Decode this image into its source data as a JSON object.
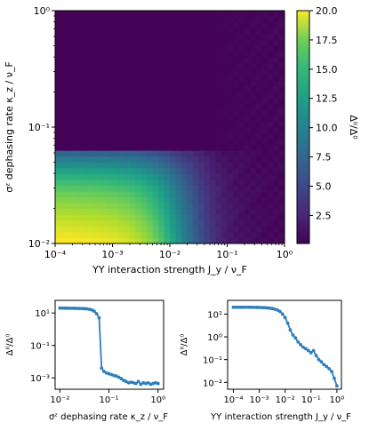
{
  "chart_data": [
    {
      "type": "heatmap",
      "xlabel": "YY interaction strength J_y / ν_F",
      "ylabel": "σᶻ dephasing rate κ_z / ν_F",
      "x_scale": "log",
      "y_scale": "log",
      "xlim": [
        0.0001,
        1
      ],
      "ylim": [
        0.01,
        1
      ],
      "x_ticks": [
        {
          "value": 0.0001,
          "label": "10⁻⁴"
        },
        {
          "value": 0.001,
          "label": "10⁻³"
        },
        {
          "value": 0.01,
          "label": "10⁻²"
        },
        {
          "value": 0.1,
          "label": "10⁻¹"
        },
        {
          "value": 1,
          "label": "10⁰"
        }
      ],
      "y_ticks": [
        {
          "value": 0.01,
          "label": "10⁻²"
        },
        {
          "value": 0.1,
          "label": "10⁻¹"
        },
        {
          "value": 1,
          "label": "10⁰"
        }
      ],
      "colorbar": {
        "label": "Δᴵᴵ/Δ⁰",
        "range": [
          0.1,
          20
        ],
        "colormap": "viridis",
        "ticks": [
          "2.5",
          "5.0",
          "7.5",
          "10.0",
          "12.5",
          "15.0",
          "17.5",
          "20.0"
        ]
      },
      "grid": {
        "nx": 40,
        "ny": 40,
        "description_values": {
          "high_region_max": 20,
          "kappa_transition": 0.063,
          "j_transition": 0.015,
          "background": 0.2
        }
      }
    },
    {
      "type": "line",
      "xlabel": "σᶻ dephasing rate κ_z / ν_F",
      "ylabel": "Δᴵᴵ/Δ⁰",
      "x_scale": "log",
      "y_scale": "log",
      "xlim": [
        0.008,
        1.3
      ],
      "ylim": [
        0.0002,
        60
      ],
      "x_ticks": [
        {
          "value": 0.01,
          "label": "10⁻²"
        },
        {
          "value": 0.1,
          "label": "10⁻¹"
        },
        {
          "value": 1,
          "label": "10⁰"
        }
      ],
      "y_ticks": [
        {
          "value": 10,
          "label": "10¹"
        },
        {
          "value": 0.1,
          "label": "10⁻¹"
        },
        {
          "value": 0.001,
          "label": "10⁻³"
        }
      ],
      "color": "#2e7ebc",
      "series": [
        {
          "x": [
            0.01,
            0.0112,
            0.0126,
            0.0141,
            0.0158,
            0.0178,
            0.02,
            0.0224,
            0.0251,
            0.0282,
            0.0316,
            0.0355,
            0.0398,
            0.0447,
            0.05,
            0.056,
            0.0631,
            0.0708,
            0.0794,
            0.0891,
            0.1,
            0.112,
            0.126,
            0.141,
            0.158,
            0.178,
            0.2,
            0.224,
            0.251,
            0.282,
            0.316,
            0.355,
            0.398,
            0.447,
            0.501,
            0.562,
            0.631,
            0.708,
            0.794,
            0.891,
            1.0
          ],
          "y": [
            20,
            20,
            19.8,
            19.7,
            19.6,
            19.5,
            19.4,
            19.2,
            19.0,
            18.8,
            18.4,
            18.0,
            17.0,
            15.5,
            13.0,
            9.0,
            5.0,
            0.004,
            0.0025,
            0.002,
            0.0018,
            0.0016,
            0.0014,
            0.0013,
            0.0011,
            0.0009,
            0.0007,
            0.0006,
            0.0005,
            0.00055,
            0.0005,
            0.00045,
            0.0006,
            0.0004,
            0.0005,
            0.00045,
            0.0005,
            0.0004,
            0.00045,
            0.0005,
            0.00045
          ]
        }
      ]
    },
    {
      "type": "line",
      "xlabel": "YY interaction strength J_y / ν_F",
      "ylabel": "Δᴵᴵ/Δ⁰",
      "x_scale": "log",
      "y_scale": "log",
      "xlim": [
        6e-05,
        1.5
      ],
      "ylim": [
        0.005,
        40
      ],
      "x_ticks": [
        {
          "value": 0.0001,
          "label": "10⁻⁴"
        },
        {
          "value": 0.001,
          "label": "10⁻³"
        },
        {
          "value": 0.01,
          "label": "10⁻²"
        },
        {
          "value": 0.1,
          "label": "10⁻¹"
        },
        {
          "value": 1,
          "label": "10⁰"
        }
      ],
      "y_ticks": [
        {
          "value": 10,
          "label": "10¹"
        },
        {
          "value": 1,
          "label": "10⁰"
        },
        {
          "value": 0.1,
          "label": "10⁻¹"
        },
        {
          "value": 0.01,
          "label": "10⁻²"
        }
      ],
      "color": "#2e7ebc",
      "series": [
        {
          "x": [
            0.0001,
            0.000126,
            0.000158,
            0.0002,
            0.000251,
            0.000316,
            0.000398,
            0.000501,
            0.000631,
            0.000794,
            0.001,
            0.00126,
            0.00158,
            0.002,
            0.00251,
            0.00316,
            0.00398,
            0.00501,
            0.00631,
            0.00794,
            0.01,
            0.0126,
            0.0158,
            0.02,
            0.0251,
            0.0316,
            0.0398,
            0.0501,
            0.0631,
            0.0794,
            0.1,
            0.126,
            0.158,
            0.2,
            0.251,
            0.316,
            0.398,
            0.501,
            0.631,
            0.794,
            1.0
          ],
          "y": [
            20,
            20,
            20,
            20,
            20,
            19.9,
            19.9,
            19.8,
            19.7,
            19.6,
            19.5,
            19.3,
            19.0,
            18.7,
            18.2,
            17.5,
            16.5,
            15.0,
            13.0,
            10.0,
            7.0,
            4.0,
            2.0,
            1.2,
            0.9,
            0.6,
            0.45,
            0.35,
            0.3,
            0.25,
            0.2,
            0.25,
            0.15,
            0.1,
            0.08,
            0.06,
            0.05,
            0.04,
            0.03,
            0.015,
            0.007
          ]
        }
      ]
    }
  ]
}
